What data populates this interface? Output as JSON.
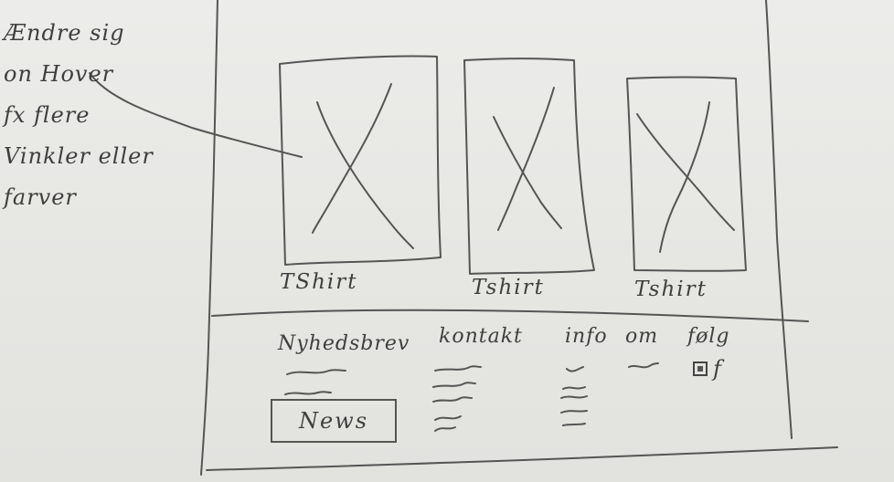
{
  "annotation": {
    "lines": [
      "Ændre sig",
      "on Hover",
      "fx flere",
      "Vinkler eller",
      "farver"
    ]
  },
  "products": [
    {
      "label": "TShirt",
      "image_icon": "image-placeholder-x"
    },
    {
      "label": "Tshirt",
      "image_icon": "image-placeholder-x"
    },
    {
      "label": "Tshirt",
      "image_icon": "image-placeholder-x"
    }
  ],
  "footer": {
    "columns": [
      {
        "title": "Nyhedsbrev"
      },
      {
        "title": "kontakt"
      },
      {
        "title": "info"
      },
      {
        "title": "om"
      },
      {
        "title": "følg"
      }
    ],
    "news_button": "News",
    "social_icons": [
      "instagram-icon",
      "facebook-icon"
    ],
    "facebook_glyph": "f"
  }
}
